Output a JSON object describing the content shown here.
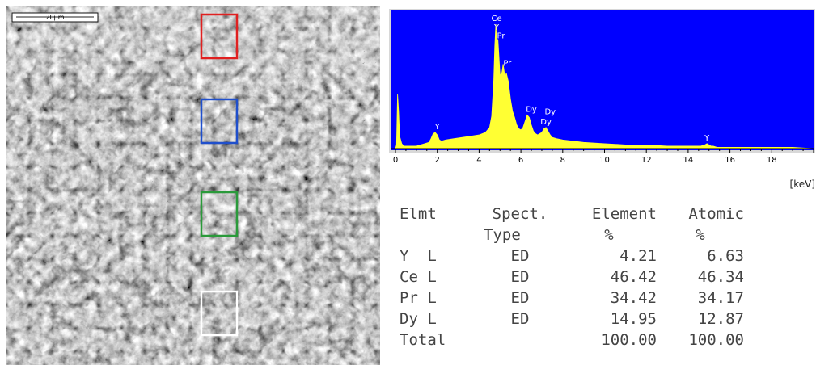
{
  "sem_image": {
    "scale_bar_label": "20µm",
    "roi_boxes": [
      {
        "name": "red",
        "color": "#e02020"
      },
      {
        "name": "blue",
        "color": "#1f4fcc"
      },
      {
        "name": "green",
        "color": "#2a9a3a"
      },
      {
        "name": "white",
        "color": "#ffffff"
      }
    ]
  },
  "chart_data": {
    "type": "area",
    "plot_background": "#0000ff",
    "fill_color": "#ffff33",
    "xlabel": "[keV]",
    "xlim": [
      0,
      20
    ],
    "ylim": [
      0,
      100
    ],
    "x_ticks": [
      0,
      2,
      4,
      6,
      8,
      10,
      12,
      14,
      16,
      18
    ],
    "x": [
      0.0,
      0.05,
      0.1,
      0.15,
      0.2,
      0.3,
      0.4,
      0.6,
      0.8,
      1.0,
      1.2,
      1.4,
      1.6,
      1.7,
      1.8,
      1.9,
      2.0,
      2.1,
      2.2,
      2.4,
      2.8,
      3.2,
      3.6,
      4.0,
      4.3,
      4.5,
      4.6,
      4.7,
      4.75,
      4.8,
      4.85,
      4.9,
      4.95,
      5.0,
      5.05,
      5.1,
      5.15,
      5.2,
      5.25,
      5.3,
      5.4,
      5.5,
      5.6,
      5.7,
      5.8,
      5.9,
      6.0,
      6.1,
      6.2,
      6.3,
      6.4,
      6.5,
      6.6,
      6.7,
      6.8,
      6.9,
      7.0,
      7.1,
      7.2,
      7.3,
      7.4,
      7.5,
      7.7,
      8.0,
      8.5,
      9.0,
      10.0,
      11.0,
      12.0,
      13.0,
      14.0,
      14.6,
      14.8,
      14.9,
      15.0,
      15.1,
      15.2,
      15.4,
      16.0,
      17.0,
      18.0,
      19.0,
      20.0
    ],
    "y": [
      0,
      3,
      44,
      30,
      10,
      4,
      2,
      2,
      2,
      2,
      3,
      4,
      5,
      8,
      12,
      13,
      11,
      7,
      6,
      7,
      8,
      9,
      10,
      11,
      13,
      17,
      26,
      55,
      82,
      100,
      85,
      88,
      74,
      60,
      58,
      62,
      68,
      62,
      57,
      61,
      54,
      40,
      30,
      25,
      19,
      16,
      15,
      17,
      22,
      27,
      25,
      19,
      14,
      12,
      11,
      12,
      13,
      16,
      17,
      14,
      11,
      9,
      8,
      7,
      6,
      5,
      4,
      3,
      3,
      2,
      2,
      2,
      3,
      4,
      3,
      2,
      2,
      1,
      1,
      1,
      1,
      1,
      0
    ],
    "peak_labels": [
      {
        "text": "Y",
        "x": 2.0,
        "y": 13
      },
      {
        "text": "Ce",
        "x": 4.84,
        "y": 100
      },
      {
        "text": "Y",
        "x": 4.84,
        "y": 93
      },
      {
        "text": "Pr",
        "x": 5.05,
        "y": 86
      },
      {
        "text": "Pr",
        "x": 5.35,
        "y": 64
      },
      {
        "text": "Dy",
        "x": 6.5,
        "y": 27
      },
      {
        "text": "Dy",
        "x": 7.4,
        "y": 25
      },
      {
        "text": "Dy",
        "x": 7.2,
        "y": 17
      },
      {
        "text": "Y",
        "x": 14.9,
        "y": 4
      }
    ]
  },
  "table": {
    "headers": {
      "elmt": "Elmt",
      "spect": "Spect.",
      "type": "Type",
      "element": "Element",
      "atomic": "Atomic",
      "pct_element": "%",
      "pct_atomic": "%"
    },
    "rows": [
      {
        "elmt": "Y  L",
        "type": "ED",
        "element": "4.21",
        "atomic": "6.63"
      },
      {
        "elmt": "Ce L",
        "type": "ED",
        "element": "46.42",
        "atomic": "46.34"
      },
      {
        "elmt": "Pr L",
        "type": "ED",
        "element": "34.42",
        "atomic": "34.17"
      },
      {
        "elmt": "Dy L",
        "type": "ED",
        "element": "14.95",
        "atomic": "12.87"
      }
    ],
    "total": {
      "label": "Total",
      "element": "100.00",
      "atomic": "100.00"
    }
  }
}
